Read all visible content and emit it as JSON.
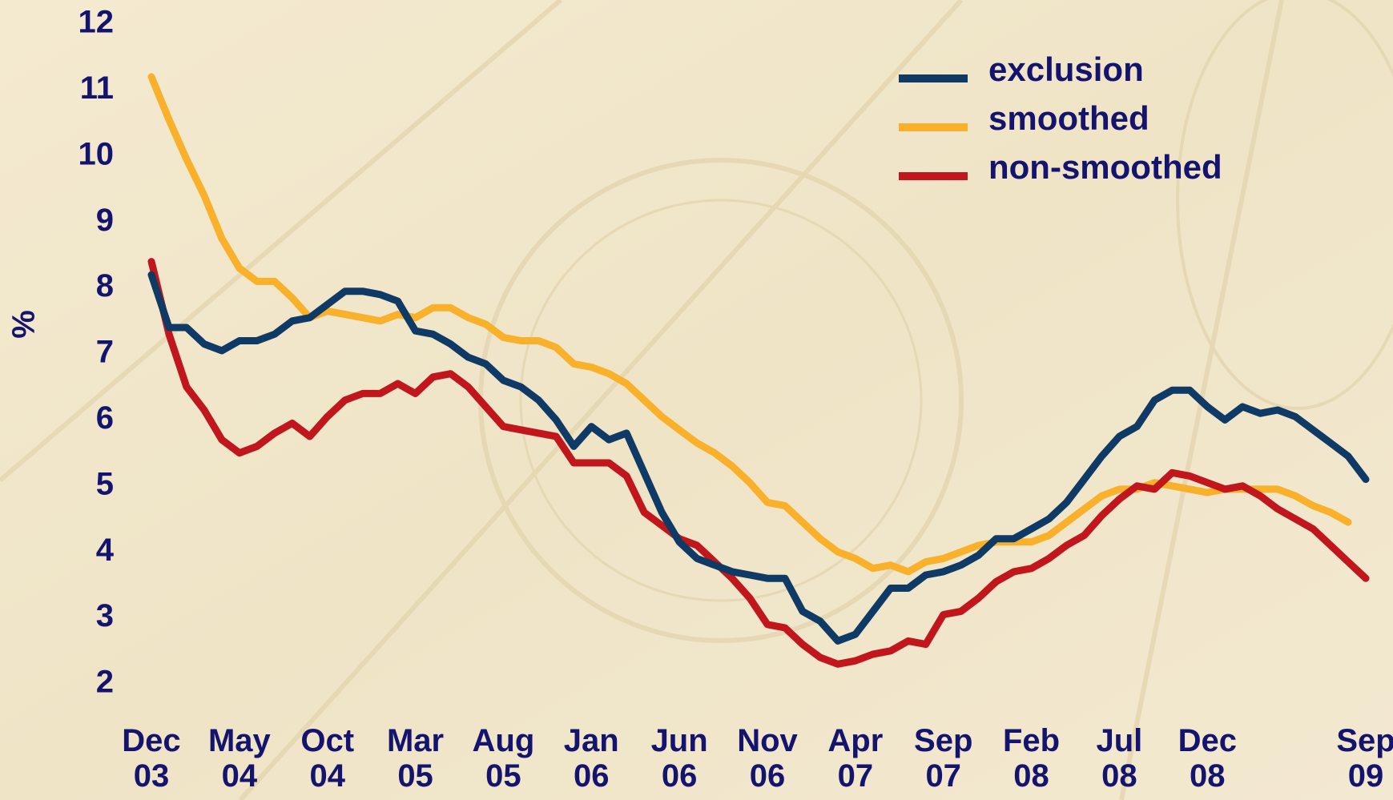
{
  "chart_data": {
    "type": "line",
    "y_label": "%",
    "categories": [
      "Dec 03",
      null,
      null,
      null,
      null,
      "May 04",
      null,
      null,
      null,
      null,
      "Oct 04",
      null,
      null,
      null,
      null,
      "Mar 05",
      null,
      null,
      null,
      null,
      "Aug 05",
      null,
      null,
      null,
      null,
      "Jan 06",
      null,
      null,
      null,
      null,
      "Jun 06",
      null,
      null,
      null,
      null,
      "Nov 06",
      null,
      null,
      null,
      null,
      "Apr 07",
      null,
      null,
      null,
      null,
      "Sep 07",
      null,
      null,
      null,
      null,
      "Feb 08",
      null,
      null,
      null,
      null,
      "Jul 08",
      null,
      null,
      null,
      null,
      "Dec 08",
      null,
      null,
      null,
      null,
      null,
      null,
      null,
      null,
      "Sep 09"
    ],
    "series": [
      {
        "name": "exclusion",
        "color": "#0f3a66",
        "values": [
          8.2,
          7.4,
          7.4,
          7.15,
          7.05,
          7.2,
          7.2,
          7.3,
          7.5,
          7.55,
          7.75,
          7.95,
          7.95,
          7.9,
          7.8,
          7.35,
          7.3,
          7.15,
          6.95,
          6.85,
          6.6,
          6.5,
          6.3,
          6.0,
          5.6,
          5.9,
          5.7,
          5.8,
          5.2,
          4.6,
          4.15,
          3.9,
          3.8,
          3.7,
          3.65,
          3.6,
          3.6,
          3.1,
          2.95,
          2.65,
          2.75,
          3.1,
          3.45,
          3.45,
          3.65,
          3.7,
          3.8,
          3.95,
          4.2,
          4.2,
          4.35,
          4.5,
          4.75,
          5.1,
          5.45,
          5.75,
          5.9,
          6.3,
          6.45,
          6.45,
          6.2,
          6.0,
          6.2,
          6.1,
          6.15,
          6.05,
          5.85,
          5.65,
          5.45,
          5.1
        ]
      },
      {
        "name": "smoothed",
        "color": "#f9b02a",
        "values": [
          11.2,
          10.55,
          9.95,
          9.4,
          8.75,
          8.3,
          8.1,
          8.1,
          7.85,
          7.55,
          7.65,
          7.6,
          7.55,
          7.5,
          7.6,
          7.55,
          7.7,
          7.7,
          7.55,
          7.45,
          7.25,
          7.2,
          7.2,
          7.1,
          6.85,
          6.8,
          6.7,
          6.55,
          6.3,
          6.05,
          5.85,
          5.65,
          5.5,
          5.3,
          5.05,
          4.75,
          4.7,
          4.45,
          4.2,
          4.0,
          3.9,
          3.75,
          3.8,
          3.7,
          3.85,
          3.9,
          4.0,
          4.1,
          4.15,
          4.15,
          4.15,
          4.25,
          4.45,
          4.65,
          4.85,
          4.95,
          4.95,
          5.05,
          5.0,
          4.95,
          4.9,
          4.95,
          4.95,
          4.95,
          4.95,
          4.85,
          4.7,
          4.6,
          4.45,
          null
        ]
      },
      {
        "name": "non-smoothed",
        "color": "#c0161c",
        "values": [
          8.4,
          7.3,
          6.5,
          6.15,
          5.7,
          5.5,
          5.6,
          5.8,
          5.95,
          5.75,
          6.05,
          6.3,
          6.4,
          6.4,
          6.55,
          6.4,
          6.65,
          6.7,
          6.5,
          6.2,
          5.9,
          5.85,
          5.8,
          5.75,
          5.35,
          5.35,
          5.35,
          5.15,
          4.6,
          4.4,
          4.2,
          4.1,
          3.85,
          3.6,
          3.3,
          2.9,
          2.85,
          2.6,
          2.4,
          2.3,
          2.35,
          2.45,
          2.5,
          2.65,
          2.6,
          3.05,
          3.1,
          3.3,
          3.55,
          3.7,
          3.75,
          3.9,
          4.1,
          4.25,
          4.55,
          4.8,
          5.0,
          4.95,
          5.2,
          5.15,
          5.05,
          4.95,
          5.0,
          4.85,
          4.65,
          4.5,
          4.35,
          4.1,
          3.85,
          3.6
        ]
      }
    ],
    "ylim": [
      2,
      12
    ],
    "yticks": [
      2,
      3,
      4,
      5,
      6,
      7,
      8,
      9,
      10,
      11,
      12
    ],
    "grid": false,
    "legend": "top-right"
  }
}
